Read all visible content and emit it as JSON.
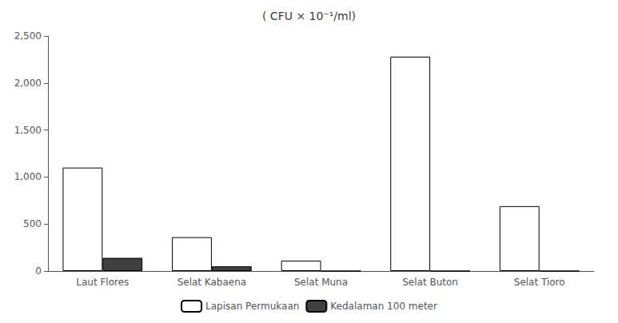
{
  "chart_data": {
    "type": "bar",
    "title": "( CFU × 10⁻¹/ml)",
    "categories": [
      "Laut Flores",
      "Selat Kabaena",
      "Selat Muna",
      "Selat Buton",
      "Selat Tioro"
    ],
    "series": [
      {
        "name": "Lapisan Permukaan",
        "color": "#ffffff",
        "values": [
          1100,
          360,
          110,
          2280,
          690
        ]
      },
      {
        "name": "Kedalaman 100 meter",
        "color": "#404040",
        "values": [
          140,
          50,
          0,
          0,
          0
        ]
      }
    ],
    "ylim": [
      0,
      2500
    ],
    "yticks": [
      0,
      500,
      1000,
      1500,
      2000,
      2500
    ],
    "grid": false,
    "legend": "bottom"
  }
}
